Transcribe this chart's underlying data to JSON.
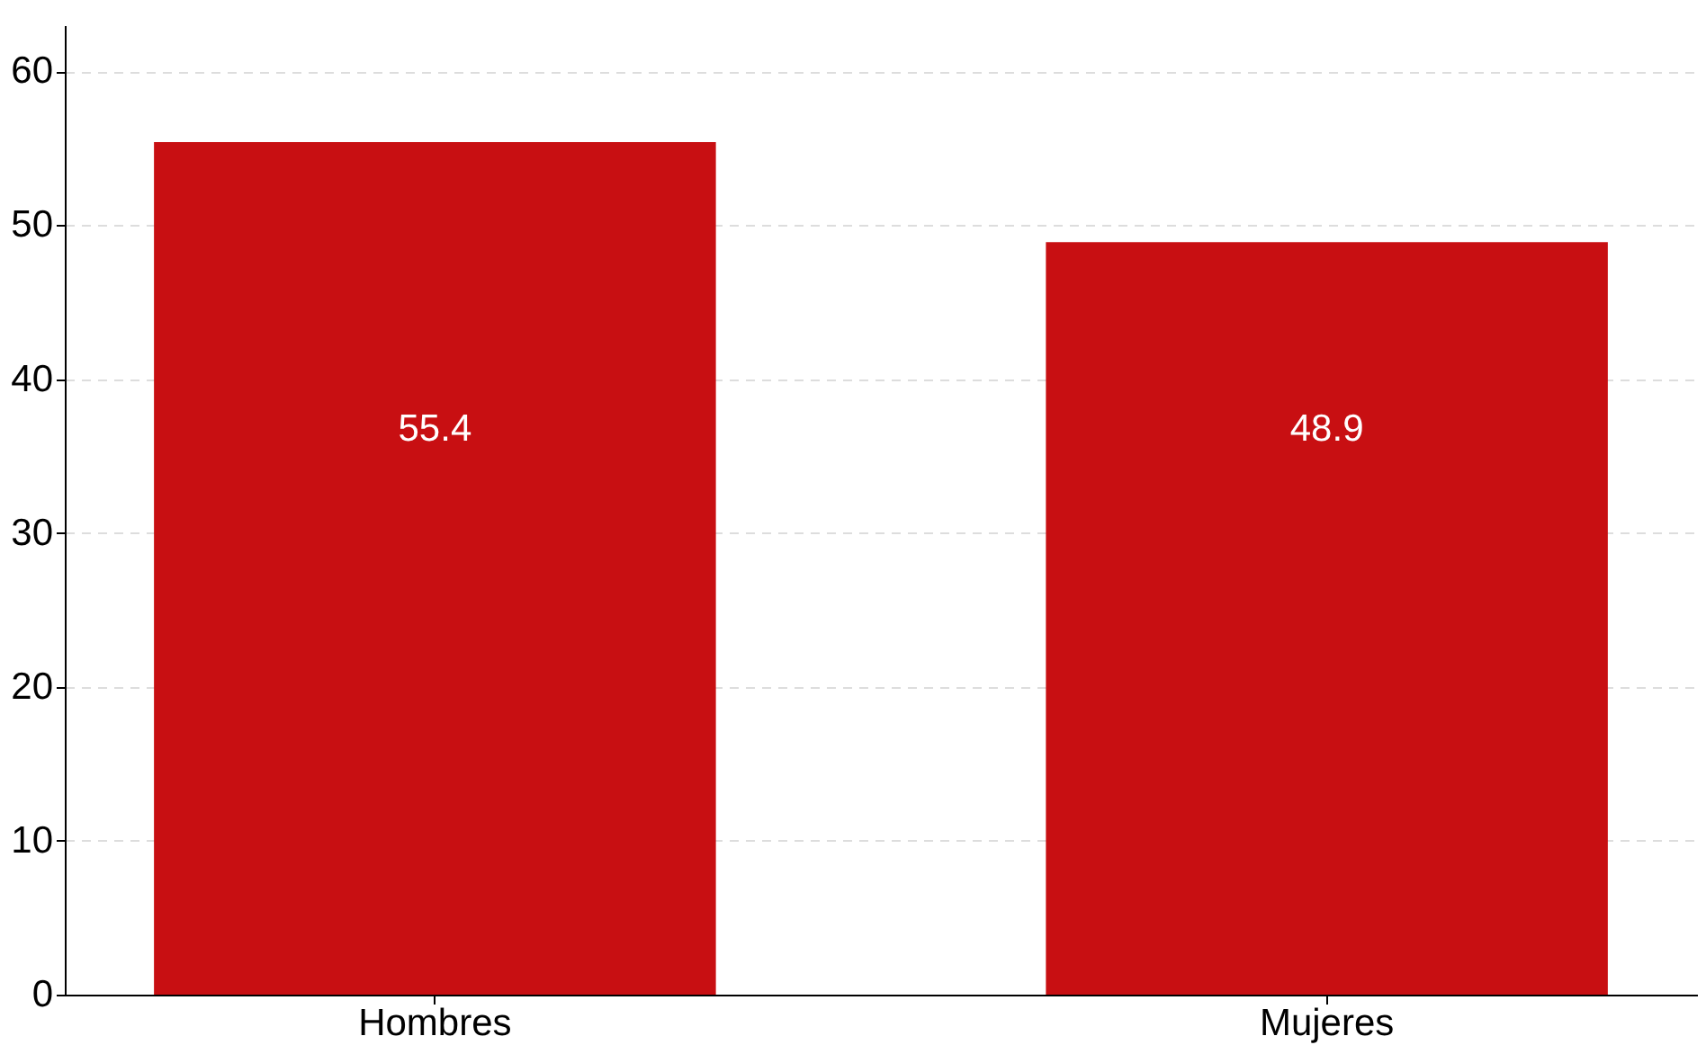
{
  "chart_data": {
    "type": "bar",
    "categories": [
      "Hombres",
      "Mujeres"
    ],
    "values": [
      55.4,
      48.9
    ],
    "color": "#c80f12",
    "ylim": [
      0,
      63
    ],
    "yticks": [
      0,
      10,
      20,
      30,
      40,
      50,
      60
    ],
    "grid": "y",
    "data_labels": true
  }
}
